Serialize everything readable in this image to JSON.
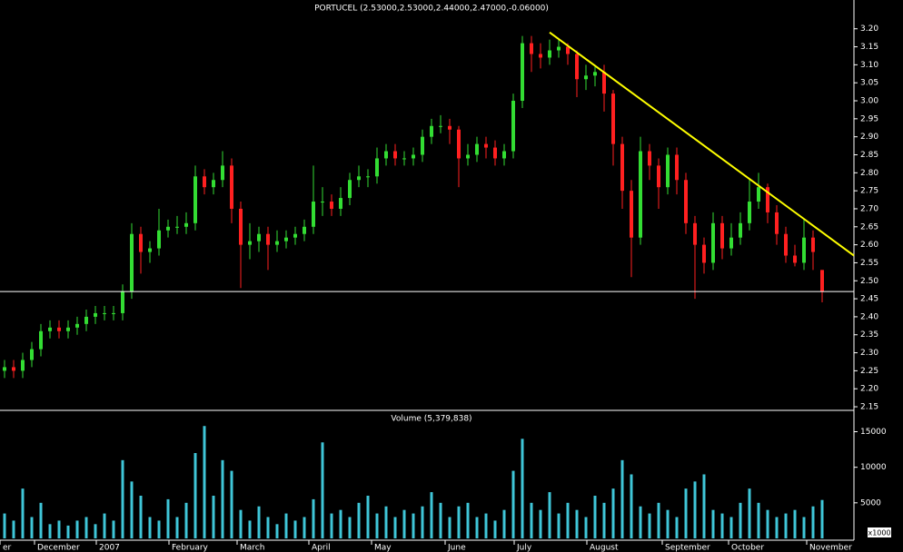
{
  "chart_data": {
    "type": "candlestick",
    "title": "PORTUCEL (2.53000,2.53000,2.44000,2.47000,-0.06000)",
    "volume_title": "Volume (5,379,838)",
    "volume_unit": "x1000",
    "up_color": "#33dd33",
    "down_color": "#ff2020",
    "volume_color": "#3fc6d8",
    "open": [
      2.25,
      2.26,
      2.25,
      2.28,
      2.31,
      2.36,
      2.37,
      2.36,
      2.37,
      2.38,
      2.4,
      2.41,
      2.41,
      2.41,
      2.47,
      2.63,
      2.58,
      2.59,
      2.64,
      2.65,
      2.65,
      2.66,
      2.79,
      2.76,
      2.78,
      2.82,
      2.7,
      2.6,
      2.61,
      2.63,
      2.6,
      2.61,
      2.62,
      2.63,
      2.65,
      2.72,
      2.72,
      2.7,
      2.73,
      2.78,
      2.79,
      2.79,
      2.84,
      2.86,
      2.84,
      2.84,
      2.85,
      2.9,
      2.93,
      2.93,
      2.92,
      2.84,
      2.85,
      2.88,
      2.87,
      2.84,
      2.86,
      3.0,
      3.16,
      3.13,
      3.12,
      3.14,
      3.15,
      3.13,
      3.06,
      3.07,
      3.08,
      3.02,
      2.88,
      2.75,
      2.62,
      2.86,
      2.82,
      2.76,
      2.85,
      2.78,
      2.66,
      2.6,
      2.55,
      2.66,
      2.59,
      2.62,
      2.66,
      2.72,
      2.76,
      2.69,
      2.63,
      2.57,
      2.55,
      2.62,
      2.53
    ],
    "high": [
      2.28,
      2.28,
      2.3,
      2.33,
      2.38,
      2.39,
      2.39,
      2.39,
      2.4,
      2.42,
      2.43,
      2.43,
      2.43,
      2.49,
      2.66,
      2.65,
      2.61,
      2.7,
      2.67,
      2.68,
      2.69,
      2.82,
      2.81,
      2.8,
      2.86,
      2.84,
      2.72,
      2.66,
      2.65,
      2.65,
      2.64,
      2.64,
      2.65,
      2.67,
      2.82,
      2.76,
      2.74,
      2.76,
      2.8,
      2.82,
      2.81,
      2.87,
      2.88,
      2.88,
      2.86,
      2.87,
      2.92,
      2.95,
      2.96,
      2.95,
      2.93,
      2.88,
      2.9,
      2.9,
      2.89,
      2.88,
      3.02,
      3.18,
      3.18,
      3.16,
      3.17,
      3.17,
      3.16,
      3.14,
      3.1,
      3.1,
      3.1,
      3.03,
      2.9,
      2.78,
      2.9,
      2.88,
      2.84,
      2.87,
      2.87,
      2.8,
      2.68,
      2.62,
      2.69,
      2.68,
      2.66,
      2.69,
      2.78,
      2.8,
      2.77,
      2.71,
      2.65,
      2.6,
      2.67,
      2.64,
      2.53
    ],
    "low": [
      2.23,
      2.23,
      2.23,
      2.26,
      2.29,
      2.34,
      2.34,
      2.34,
      2.35,
      2.36,
      2.38,
      2.39,
      2.39,
      2.39,
      2.45,
      2.52,
      2.55,
      2.57,
      2.62,
      2.63,
      2.63,
      2.64,
      2.74,
      2.74,
      2.76,
      2.66,
      2.48,
      2.56,
      2.58,
      2.53,
      2.58,
      2.59,
      2.6,
      2.61,
      2.63,
      2.68,
      2.68,
      2.68,
      2.71,
      2.76,
      2.76,
      2.77,
      2.82,
      2.82,
      2.82,
      2.82,
      2.83,
      2.88,
      2.91,
      2.88,
      2.76,
      2.82,
      2.83,
      2.84,
      2.82,
      2.82,
      2.84,
      2.98,
      3.08,
      3.09,
      3.1,
      3.12,
      3.1,
      3.01,
      3.03,
      3.04,
      2.97,
      2.82,
      2.7,
      2.51,
      2.6,
      2.78,
      2.7,
      2.74,
      2.74,
      2.63,
      2.45,
      2.52,
      2.53,
      2.56,
      2.57,
      2.6,
      2.64,
      2.7,
      2.66,
      2.6,
      2.55,
      2.54,
      2.53,
      2.53,
      2.44
    ],
    "close": [
      2.26,
      2.25,
      2.28,
      2.31,
      2.36,
      2.37,
      2.36,
      2.37,
      2.38,
      2.4,
      2.41,
      2.41,
      2.41,
      2.47,
      2.63,
      2.58,
      2.59,
      2.64,
      2.65,
      2.65,
      2.66,
      2.79,
      2.76,
      2.78,
      2.82,
      2.7,
      2.6,
      2.61,
      2.63,
      2.6,
      2.61,
      2.62,
      2.63,
      2.65,
      2.72,
      2.72,
      2.7,
      2.73,
      2.78,
      2.79,
      2.79,
      2.84,
      2.86,
      2.84,
      2.84,
      2.85,
      2.9,
      2.93,
      2.93,
      2.92,
      2.84,
      2.85,
      2.88,
      2.87,
      2.84,
      2.86,
      3.0,
      3.16,
      3.13,
      3.12,
      3.14,
      3.15,
      3.13,
      3.06,
      3.07,
      3.08,
      3.02,
      2.88,
      2.75,
      2.62,
      2.86,
      2.82,
      2.76,
      2.85,
      2.78,
      2.66,
      2.6,
      2.55,
      2.66,
      2.59,
      2.62,
      2.66,
      2.72,
      2.76,
      2.69,
      2.63,
      2.57,
      2.55,
      2.62,
      2.58,
      2.47
    ],
    "volume": [
      3500,
      2500,
      7000,
      3000,
      5000,
      2000,
      2500,
      1800,
      2500,
      3000,
      2000,
      3500,
      2500,
      11000,
      8000,
      6000,
      3000,
      2500,
      5500,
      3000,
      5000,
      12000,
      15800,
      6000,
      11000,
      9500,
      4000,
      2500,
      4500,
      3000,
      2000,
      3500,
      2500,
      3000,
      5500,
      13500,
      3500,
      4000,
      3000,
      5000,
      6000,
      3500,
      4500,
      3000,
      4000,
      3500,
      4500,
      6500,
      5000,
      3000,
      4500,
      5000,
      3000,
      3500,
      2500,
      4000,
      9500,
      14000,
      5000,
      4000,
      6500,
      3500,
      5000,
      4000,
      3000,
      6000,
      5000,
      7000,
      11000,
      9000,
      4500,
      3500,
      5000,
      4000,
      3000,
      7000,
      8000,
      9000,
      4000,
      3500,
      3000,
      5000,
      7000,
      5000,
      4000,
      3000,
      3500,
      4000,
      3000,
      4500,
      5400
    ],
    "xlim": [
      -0.5,
      93.5
    ],
    "xticks": [
      {
        "value": -0.5,
        "label": "er"
      },
      {
        "value": 3.3,
        "label": "December"
      },
      {
        "value": 10.1,
        "label": "2007"
      },
      {
        "value": 18.1,
        "label": "February"
      },
      {
        "value": 25.6,
        "label": "March"
      },
      {
        "value": 33.5,
        "label": "April"
      },
      {
        "value": 40.4,
        "label": "May"
      },
      {
        "value": 48.5,
        "label": "June"
      },
      {
        "value": 56.1,
        "label": "July"
      },
      {
        "value": 64.1,
        "label": "August"
      },
      {
        "value": 72.4,
        "label": "September"
      },
      {
        "value": 79.7,
        "label": "October"
      },
      {
        "value": 88.3,
        "label": "November"
      }
    ],
    "ylim": [
      2.14,
      3.28
    ],
    "yticks": [
      2.15,
      {
        "value": 2.2,
        "label": "2.20"
      },
      2.25,
      {
        "value": 2.3,
        "label": "2.30"
      },
      2.35,
      {
        "value": 2.4,
        "label": "2.40"
      },
      2.45,
      {
        "value": 2.5,
        "label": "2.50"
      },
      2.55,
      {
        "value": 2.6,
        "label": "2.60"
      },
      2.65,
      {
        "value": 2.7,
        "label": "2.70"
      },
      2.75,
      {
        "value": 2.8,
        "label": "2.80"
      },
      2.85,
      {
        "value": 2.9,
        "label": "2.90"
      },
      2.95,
      {
        "value": 3.0,
        "label": "3.00"
      },
      3.05,
      {
        "value": 3.1,
        "label": "3.10"
      },
      3.15,
      {
        "value": 3.2,
        "label": "3.20"
      }
    ],
    "volume_ylim": [
      0,
      18000
    ],
    "volume_yticks": [
      5000,
      10000,
      15000
    ],
    "support_line": {
      "value": 2.47,
      "color": "#ffffff"
    },
    "trendline": {
      "x": [
        60,
        93.5
      ],
      "y": [
        3.19,
        2.57
      ],
      "color": "#ffff00"
    }
  }
}
